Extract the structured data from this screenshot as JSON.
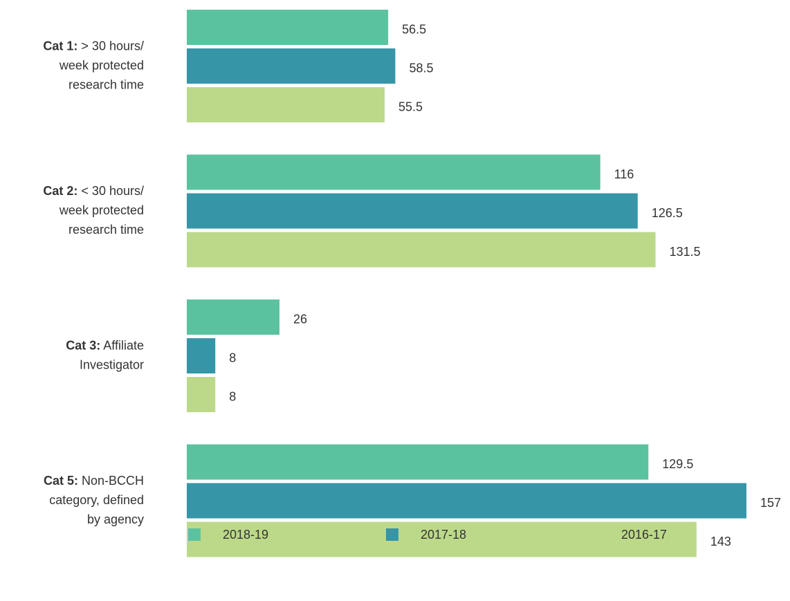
{
  "chart_data": {
    "type": "bar",
    "orientation": "horizontal",
    "categories": [
      "Cat 1: > 30 hours/\nweek protected\nresearch time",
      "Cat 2: < 30 hours/\nweek protected\nresearch time",
      "Cat 3: Affiliate\nInvestigator",
      "Cat 5: Non-BCCH\ncategory, defined\nby agency"
    ],
    "series": [
      {
        "name": "2018-19",
        "color": "#5bc2a0",
        "values": [
          56.5,
          116,
          26,
          129.5
        ]
      },
      {
        "name": "2017-18",
        "color": "#3696a8",
        "values": [
          58.5,
          126.5,
          8,
          157
        ]
      },
      {
        "name": "2016-17",
        "color": "#bcd98a",
        "values": [
          55.5,
          131.5,
          8,
          143
        ]
      }
    ],
    "legend": "bottom"
  }
}
